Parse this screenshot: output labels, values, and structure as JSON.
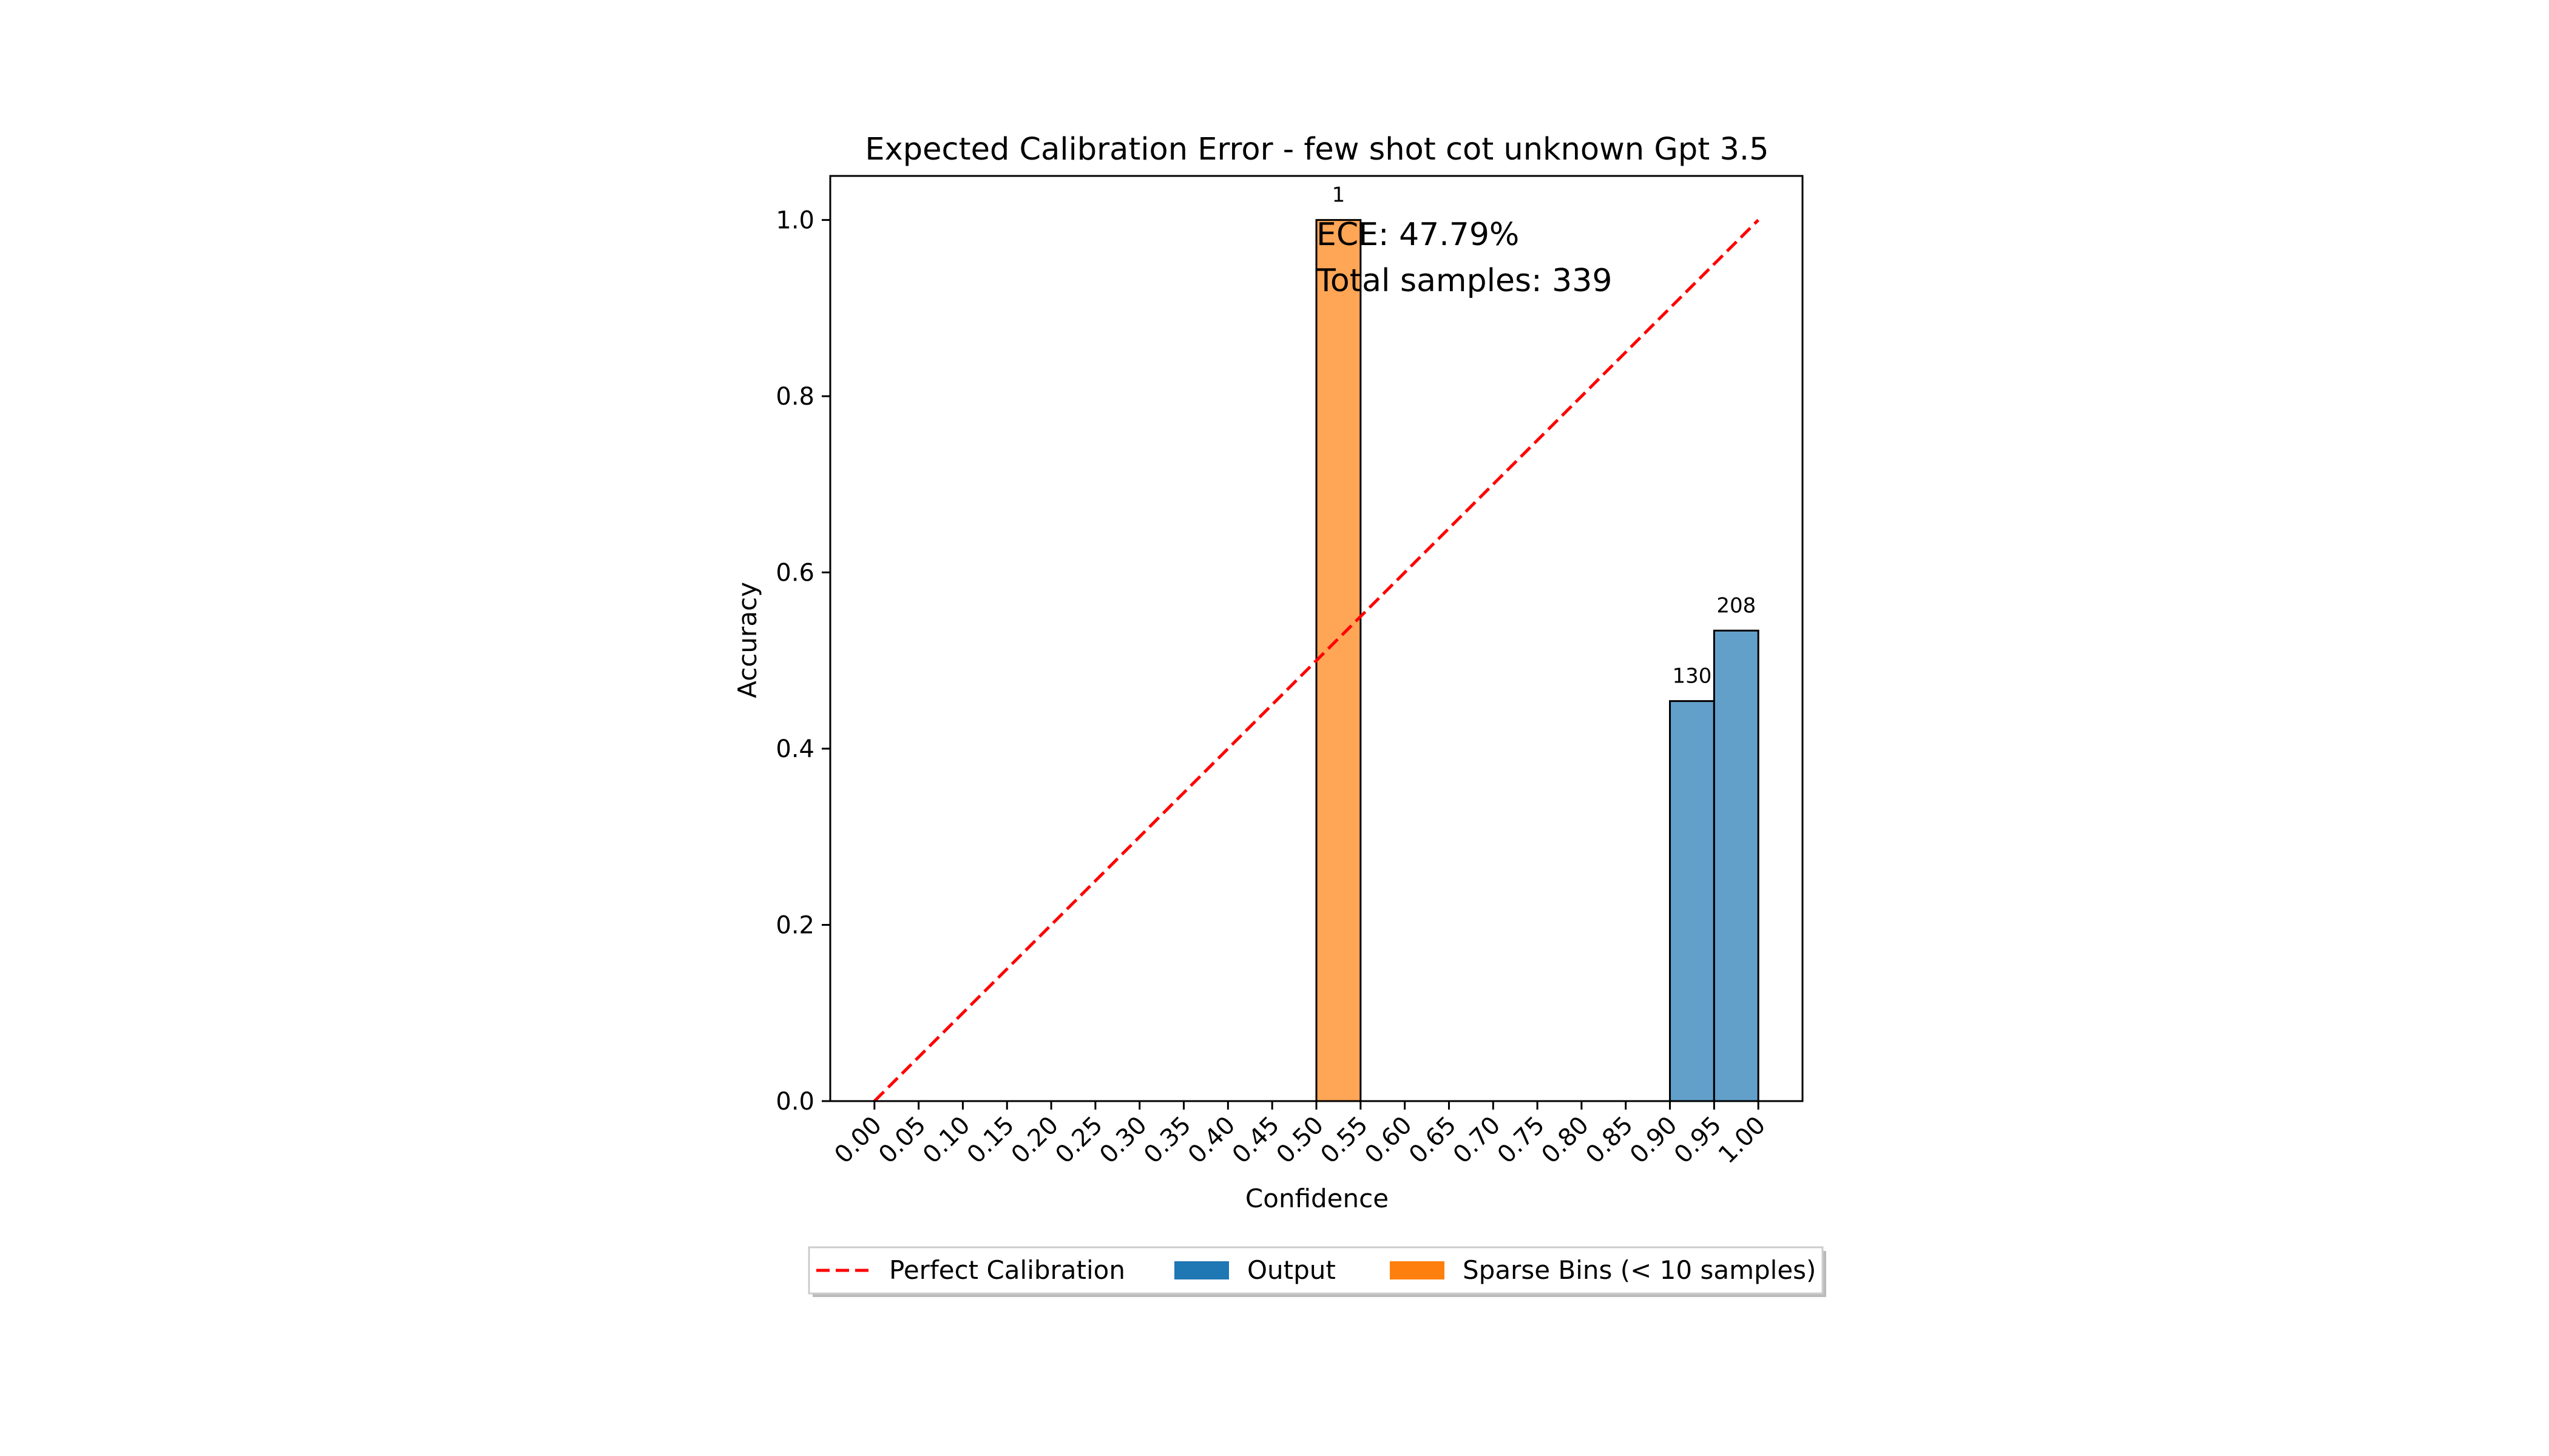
{
  "chart_data": {
    "type": "bar",
    "title": "Expected Calibration Error - few shot cot unknown Gpt 3.5",
    "xlabel": "Confidence",
    "ylabel": "Accuracy",
    "xlim": [
      -0.05,
      1.05
    ],
    "ylim": [
      0.0,
      1.05
    ],
    "x_ticks": [
      "0.00",
      "0.05",
      "0.10",
      "0.15",
      "0.20",
      "0.25",
      "0.30",
      "0.35",
      "0.40",
      "0.45",
      "0.50",
      "0.55",
      "0.60",
      "0.65",
      "0.70",
      "0.75",
      "0.80",
      "0.85",
      "0.90",
      "0.95",
      "1.00"
    ],
    "y_ticks": [
      "0.0",
      "0.2",
      "0.4",
      "0.6",
      "0.8",
      "1.0"
    ],
    "bin_width": 0.05,
    "bars": [
      {
        "bin_start": 0.5,
        "accuracy": 1.0,
        "count": "1",
        "series": "Sparse Bins (< 10 samples)"
      },
      {
        "bin_start": 0.9,
        "accuracy": 0.454,
        "count": "130",
        "series": "Output"
      },
      {
        "bin_start": 0.95,
        "accuracy": 0.534,
        "count": "208",
        "series": "Output"
      }
    ],
    "reference_line": {
      "name": "Perfect Calibration",
      "x": [
        0.0,
        1.0
      ],
      "y": [
        0.0,
        1.0
      ]
    },
    "annotations": [
      "ECE: 47.79%",
      "Total samples: 339"
    ],
    "legend": {
      "placement": "bottom-center",
      "entries": [
        {
          "label": "Perfect Calibration",
          "kind": "line"
        },
        {
          "label": "Output",
          "kind": "patch"
        },
        {
          "label": "Sparse Bins (< 10 samples)",
          "kind": "patch"
        }
      ]
    },
    "colors": {
      "output": "#1f77b4",
      "sparse": "#ff7f0e",
      "perfect": "#ff0000"
    },
    "grid": false
  }
}
